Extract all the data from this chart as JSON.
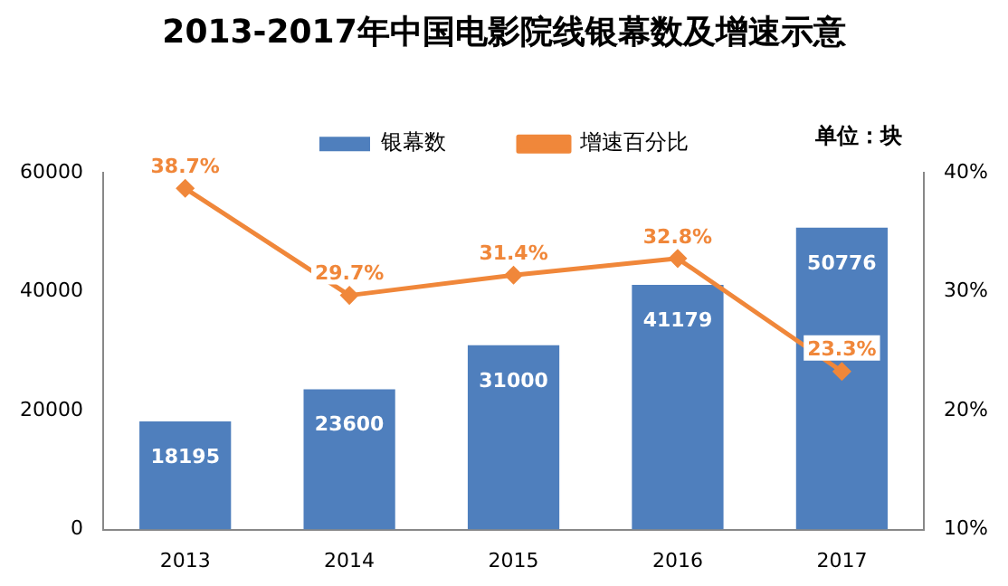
{
  "chart_data": {
    "type": "bar",
    "title": "2013-2017年中国电影院线银幕数及增速示意",
    "categories": [
      "2013",
      "2014",
      "2015",
      "2016",
      "2017"
    ],
    "series": [
      {
        "name": "银幕数",
        "color": "#4f7fbd",
        "values": [
          18195,
          23600,
          31000,
          41179,
          50776
        ],
        "value_labels": [
          "18195",
          "23600",
          "31000",
          "41179",
          "50776"
        ]
      },
      {
        "name": "增速百分比",
        "type": "line",
        "axis": "y2",
        "color": "#f0873a",
        "marker": "diamond",
        "values": [
          38.7,
          29.7,
          31.4,
          32.8,
          23.3
        ],
        "value_labels": [
          "38.7%",
          "29.7%",
          "31.4%",
          "32.8%",
          "23.3%"
        ]
      }
    ],
    "ylim": [
      0,
      60000
    ],
    "yticks": [
      0,
      20000,
      40000,
      60000
    ],
    "y2lim": [
      10,
      40
    ],
    "y2ticks": [
      {
        "value": 10,
        "label": "10%"
      },
      {
        "value": 20,
        "label": "20%"
      },
      {
        "value": 30,
        "label": "30%"
      },
      {
        "value": 40,
        "label": "40%"
      }
    ],
    "annotations": [
      "单位：块"
    ],
    "legend": "top",
    "grid": false
  }
}
